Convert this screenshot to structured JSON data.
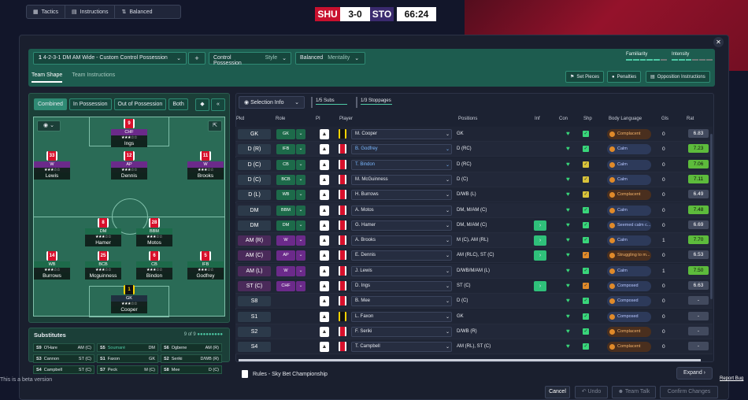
{
  "topbar": {
    "tactics": "Tactics",
    "instructions": "Instructions",
    "mentality": "Balanced"
  },
  "match": {
    "home": "SHU",
    "score": "3-0",
    "away": "STO",
    "clock": "66:24"
  },
  "tactic": {
    "formation": "4-2-3-1 DM AM Wide - Custom Control Possession",
    "formation_num": "1",
    "add": "+",
    "style_value": "Control Possession",
    "style_label": "Style",
    "mentality_value": "Balanced",
    "mentality_label": "Mentality",
    "familiarity": "Familiarity",
    "intensity": "Intensity"
  },
  "tabs": {
    "shape": "Team Shape",
    "instructions": "Team Instructions"
  },
  "right_buttons": {
    "set_pieces": "Set Pieces",
    "penalties": "Penalties",
    "opposition": "Opposition Instructions"
  },
  "filters": {
    "combined": "Combined",
    "in_possession": "In Possession",
    "out_possession": "Out of Possession",
    "both": "Both"
  },
  "pitch_players": [
    {
      "num": "9",
      "role": "CHF",
      "name": "Ings",
      "stars": "★★★☆☆"
    },
    {
      "num": "33",
      "role": "W",
      "name": "Lewis",
      "stars": "★★★☆☆"
    },
    {
      "num": "12",
      "role": "AP",
      "name": "Dennis",
      "stars": "★★★☆☆"
    },
    {
      "num": "11",
      "role": "W",
      "name": "Brooks",
      "stars": "★★★☆☆"
    },
    {
      "num": "8",
      "role": "DM",
      "name": "Hamer",
      "stars": "★★★☆☆"
    },
    {
      "num": "28",
      "role": "BBM",
      "name": "Motos",
      "stars": "★★★☆☆"
    },
    {
      "num": "14",
      "role": "WB",
      "name": "Burrows",
      "stars": "★★★☆☆"
    },
    {
      "num": "25",
      "role": "BCB",
      "name": "Mcguinness",
      "stars": "★★★☆☆"
    },
    {
      "num": "6",
      "role": "CB",
      "name": "Bindon",
      "stars": "★★★☆☆"
    },
    {
      "num": "5",
      "role": "IFB",
      "name": "Godfrey",
      "stars": "★★★☆☆"
    },
    {
      "num": "1",
      "role": "GK",
      "name": "Cooper",
      "stars": "★★★☆☆"
    }
  ],
  "subs": {
    "title": "Substitutes",
    "count": "9 of 9",
    "items": [
      {
        "pos": "S9",
        "name": "O'Hare",
        "role": "AM (C)"
      },
      {
        "pos": "S5",
        "name": "Soumaré",
        "role": "DM"
      },
      {
        "pos": "S6",
        "name": "Ogbene",
        "role": "AM (R)"
      },
      {
        "pos": "S3",
        "name": "Cannon",
        "role": "ST (C)"
      },
      {
        "pos": "S1",
        "name": "Faxon",
        "role": "GK"
      },
      {
        "pos": "S2",
        "name": "Seriki",
        "role": "D/WB (R)"
      },
      {
        "pos": "S4",
        "name": "Campbell",
        "role": "ST (C)"
      },
      {
        "pos": "S7",
        "name": "Peck",
        "role": "M (C)"
      },
      {
        "pos": "S8",
        "name": "Mee",
        "role": "D (C)"
      }
    ]
  },
  "table": {
    "selection_info": "Selection Info",
    "subs_pill": "1/5 Subs",
    "stoppages_pill": "1/3 Stoppages",
    "headers": {
      "pkd": "Pkd",
      "role": "Role",
      "pi": "PI",
      "player": "Player",
      "positions": "Positions",
      "inf": "Inf",
      "con": "Con",
      "shp": "Shp",
      "body": "Body Language",
      "gls": "Gls",
      "rat": "Rat"
    },
    "rows": [
      {
        "pos": "GK",
        "role": "GK",
        "player": "M. Cooper",
        "positions": "GK",
        "body": "Complacent",
        "gls": "0",
        "rat": "6.83"
      },
      {
        "pos": "D (R)",
        "role": "IFB",
        "player": "B. Godfrey",
        "positions": "D (RC)",
        "body": "Calm",
        "gls": "0",
        "rat": "7.23"
      },
      {
        "pos": "D (C)",
        "role": "CB",
        "player": "T. Bindon",
        "positions": "D (RC)",
        "body": "Calm",
        "gls": "0",
        "rat": "7.06"
      },
      {
        "pos": "D (C)",
        "role": "BCB",
        "player": "M. McGuinness",
        "positions": "D (C)",
        "body": "Calm",
        "gls": "0",
        "rat": "7.11"
      },
      {
        "pos": "D (L)",
        "role": "WB",
        "player": "H. Burrows",
        "positions": "D/WB (L)",
        "body": "Complacent",
        "gls": "0",
        "rat": "6.49"
      },
      {
        "pos": "DM",
        "role": "BBM",
        "player": "A. Motos",
        "positions": "DM, M/AM (C)",
        "body": "Calm",
        "gls": "0",
        "rat": "7.48"
      },
      {
        "pos": "DM",
        "role": "DM",
        "player": "G. Hamer",
        "positions": "DM, M/AM (C)",
        "body": "Seemed calm c...",
        "gls": "0",
        "rat": "6.69"
      },
      {
        "pos": "AM (R)",
        "role": "W",
        "player": "A. Brooks",
        "positions": "M (C), AM (RL)",
        "body": "Calm",
        "gls": "1",
        "rat": "7.70"
      },
      {
        "pos": "AM (C)",
        "role": "AP",
        "player": "E. Dennis",
        "positions": "AM (RLC), ST (C)",
        "body": "Struggling to m...",
        "gls": "0",
        "rat": "6.53"
      },
      {
        "pos": "AM (L)",
        "role": "W",
        "player": "J. Lewis",
        "positions": "D/WB/M/AM (L)",
        "body": "Calm",
        "gls": "1",
        "rat": "7.50"
      },
      {
        "pos": "ST (C)",
        "role": "CHF",
        "player": "D. Ings",
        "positions": "ST (C)",
        "body": "Composed",
        "gls": "0",
        "rat": "6.63"
      },
      {
        "pos": "S8",
        "role": "",
        "player": "B. Mee",
        "positions": "D (C)",
        "body": "Composed",
        "gls": "0",
        "rat": "-"
      },
      {
        "pos": "S1",
        "role": "",
        "player": "L. Faxon",
        "positions": "GK",
        "body": "Composed",
        "gls": "0",
        "rat": "-"
      },
      {
        "pos": "S2",
        "role": "",
        "player": "F. Seriki",
        "positions": "D/WB (R)",
        "body": "Complacent",
        "gls": "0",
        "rat": "-"
      },
      {
        "pos": "S4",
        "role": "",
        "player": "T. Campbell",
        "positions": "AM (RL), ST (C)",
        "body": "Complacent",
        "gls": "0",
        "rat": "-"
      }
    ]
  },
  "rules": "Rules - Sky Bet Championship",
  "expand": "Expand",
  "beta": "This is a beta version",
  "report": "Report Bug",
  "bottom": {
    "cancel": "Cancel",
    "undo": "Undo",
    "team_talk": "Team Talk",
    "confirm": "Confirm Changes"
  }
}
